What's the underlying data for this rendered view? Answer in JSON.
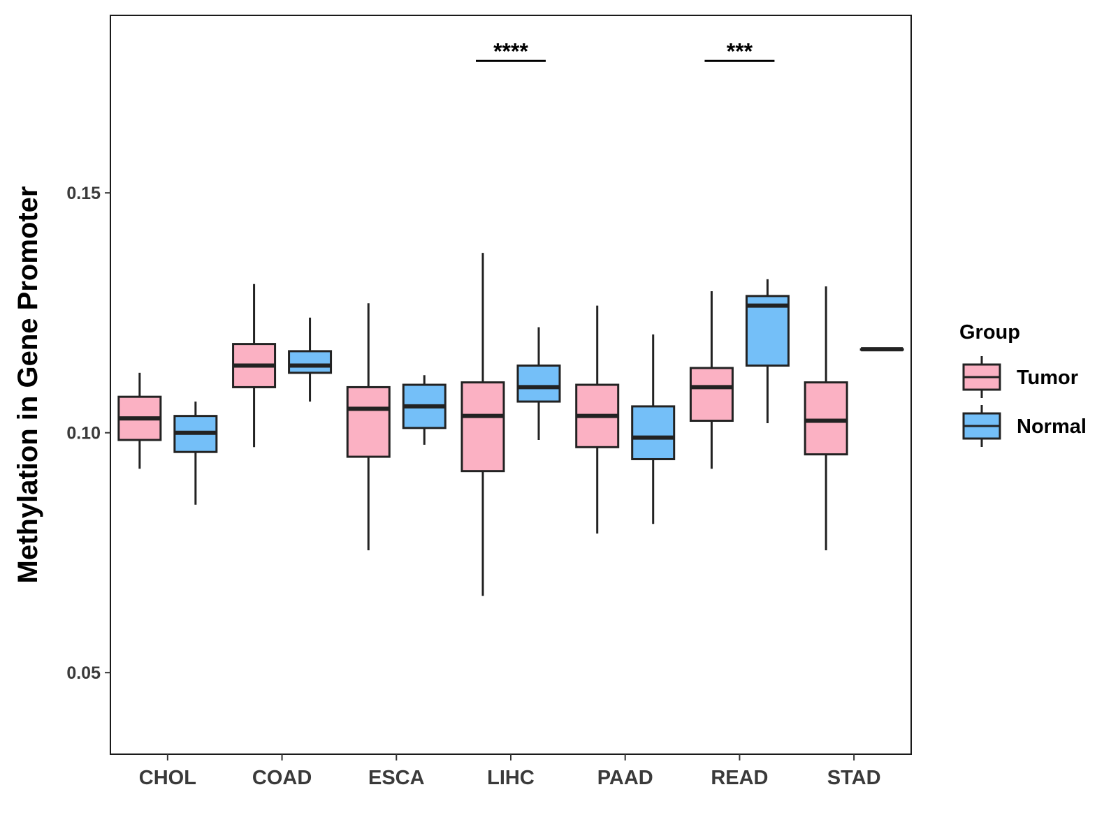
{
  "chart_data": {
    "type": "boxplot",
    "title": "",
    "xlabel": "",
    "ylabel": "Methylation in Gene Promoter",
    "ylim": [
      0.033,
      0.187
    ],
    "yticks": [
      0.05,
      0.1,
      0.15
    ],
    "ytick_labels": [
      "0.05",
      "0.10",
      "0.15"
    ],
    "categories": [
      "CHOL",
      "COAD",
      "ESCA",
      "LIHC",
      "PAAD",
      "READ",
      "STAD"
    ],
    "grid": false,
    "legend": {
      "title": "Group",
      "position": "right",
      "entries": [
        "Tumor",
        "Normal"
      ]
    },
    "series": [
      {
        "name": "Tumor",
        "color": "#fbb1c3",
        "boxes": [
          {
            "category": "CHOL",
            "min": 0.0925,
            "q1": 0.0985,
            "median": 0.103,
            "q3": 0.1075,
            "max": 0.1125
          },
          {
            "category": "COAD",
            "min": 0.097,
            "q1": 0.1095,
            "median": 0.114,
            "q3": 0.1185,
            "max": 0.131
          },
          {
            "category": "ESCA",
            "min": 0.0755,
            "q1": 0.095,
            "median": 0.105,
            "q3": 0.1095,
            "max": 0.127
          },
          {
            "category": "LIHC",
            "min": 0.066,
            "q1": 0.092,
            "median": 0.1035,
            "q3": 0.1105,
            "max": 0.1375
          },
          {
            "category": "PAAD",
            "min": 0.079,
            "q1": 0.097,
            "median": 0.1035,
            "q3": 0.11,
            "max": 0.1265
          },
          {
            "category": "READ",
            "min": 0.0925,
            "q1": 0.1025,
            "median": 0.1095,
            "q3": 0.1135,
            "max": 0.1295
          },
          {
            "category": "STAD",
            "min": 0.0755,
            "q1": 0.0955,
            "median": 0.1025,
            "q3": 0.1105,
            "max": 0.1305
          }
        ]
      },
      {
        "name": "Normal",
        "color": "#74bff8",
        "boxes": [
          {
            "category": "CHOL",
            "min": 0.085,
            "q1": 0.096,
            "median": 0.1,
            "q3": 0.1035,
            "max": 0.1065
          },
          {
            "category": "COAD",
            "min": 0.1065,
            "q1": 0.1125,
            "median": 0.114,
            "q3": 0.117,
            "max": 0.124
          },
          {
            "category": "ESCA",
            "min": 0.0975,
            "q1": 0.101,
            "median": 0.1055,
            "q3": 0.11,
            "max": 0.112
          },
          {
            "category": "LIHC",
            "min": 0.0985,
            "q1": 0.1065,
            "median": 0.1095,
            "q3": 0.114,
            "max": 0.122
          },
          {
            "category": "PAAD",
            "min": 0.081,
            "q1": 0.0945,
            "median": 0.099,
            "q3": 0.1055,
            "max": 0.1205
          },
          {
            "category": "READ",
            "min": 0.102,
            "q1": 0.114,
            "median": 0.1265,
            "q3": 0.1285,
            "max": 0.132
          },
          {
            "category": "STAD",
            "min": 0.1174,
            "q1": 0.1174,
            "median": 0.1174,
            "q3": 0.1174,
            "max": 0.1174
          }
        ]
      }
    ],
    "annotations": [
      {
        "category": "LIHC",
        "text": "****",
        "y": 0.1775
      },
      {
        "category": "READ",
        "text": "***",
        "y": 0.1775
      }
    ]
  }
}
